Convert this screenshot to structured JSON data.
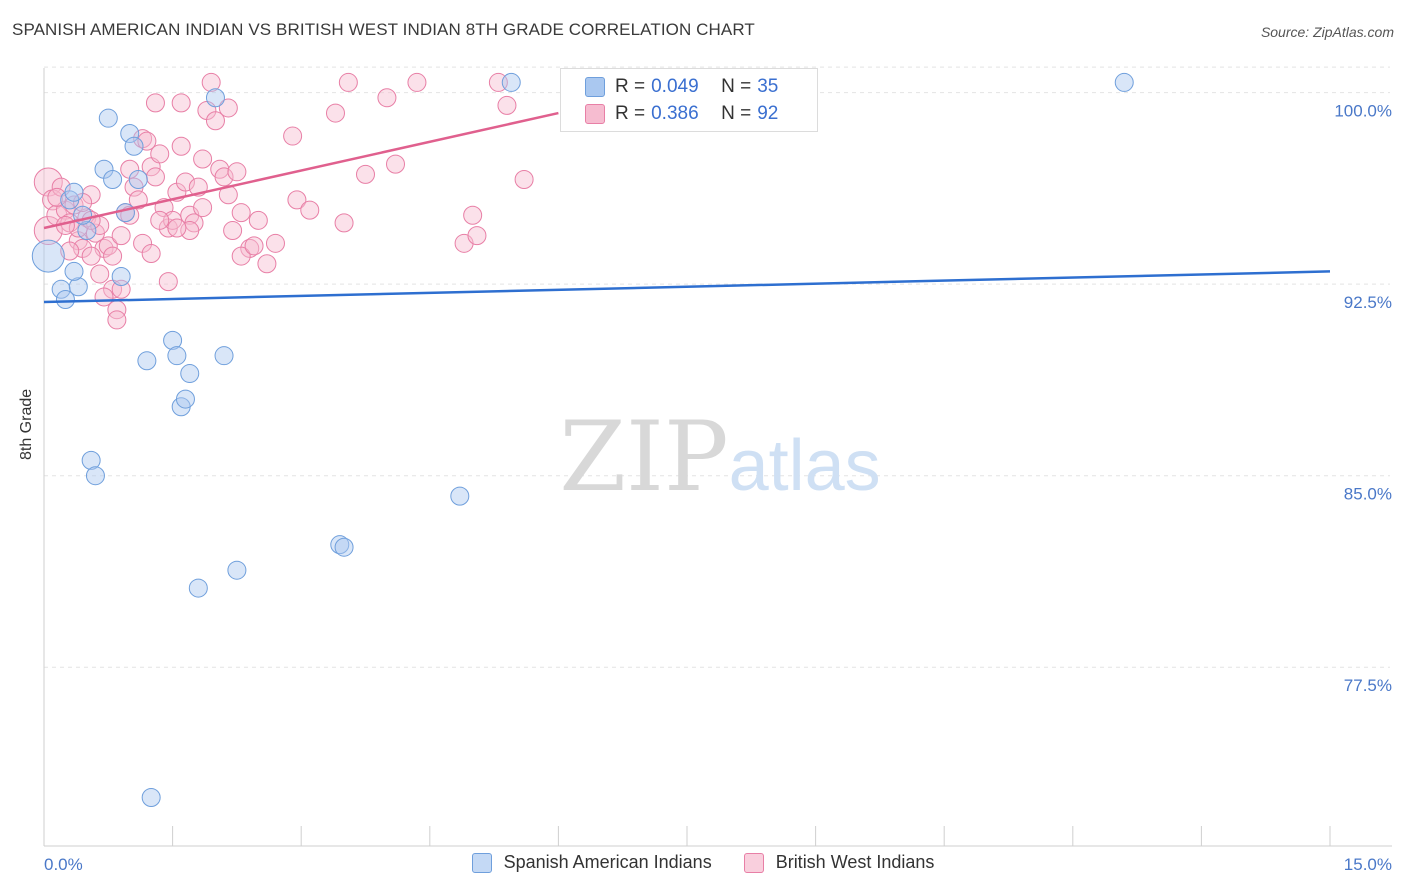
{
  "title": "SPANISH AMERICAN INDIAN VS BRITISH WEST INDIAN 8TH GRADE CORRELATION CHART",
  "source": "Source: ZipAtlas.com",
  "watermark": {
    "zip": "ZIP",
    "atlas": "atlas"
  },
  "legend": {
    "series1": {
      "r_label": "R = ",
      "r_value": "0.049",
      "n_label": "N = ",
      "n_value": "35"
    },
    "series2": {
      "r_label": "R = ",
      "r_value": "0.386",
      "n_label": "N = ",
      "n_value": "92"
    }
  },
  "colors": {
    "blue_fill": "#aac8f0",
    "blue_stroke": "#6f9fdc",
    "blue_line": "#2e6fd0",
    "pink_fill": "#f6bcd0",
    "pink_stroke": "#e87fa6",
    "pink_line": "#e0608e",
    "tick_text": "#4a78c8",
    "grid": "#e4e4e4"
  },
  "chart_data": {
    "type": "scatter",
    "title": "SPANISH AMERICAN INDIAN VS BRITISH WEST INDIAN 8TH GRADE CORRELATION CHART",
    "xlabel": "",
    "ylabel": "8th Grade",
    "xlim": [
      0,
      15
    ],
    "ylim": [
      70.5,
      101.2
    ],
    "x_tick_labels": [
      "0.0%",
      "15.0%"
    ],
    "y_ticks": [
      77.5,
      85.0,
      92.5,
      100.0
    ],
    "y_tick_labels": [
      "77.5%",
      "85.0%",
      "92.5%",
      "100.0%"
    ],
    "series": [
      {
        "name": "Spanish American Indians",
        "color": "blue",
        "R": 0.049,
        "N": 35,
        "trend": {
          "x": [
            0,
            15
          ],
          "y": [
            91.8,
            93.0
          ]
        },
        "points": [
          [
            0.05,
            93.6,
            16
          ],
          [
            0.2,
            92.3,
            9
          ],
          [
            0.25,
            91.9,
            9
          ],
          [
            0.3,
            95.8,
            9
          ],
          [
            0.35,
            96.1,
            9
          ],
          [
            0.4,
            92.4,
            9
          ],
          [
            0.5,
            94.6,
            9
          ],
          [
            0.55,
            85.6,
            9
          ],
          [
            0.6,
            85.0,
            9
          ],
          [
            0.7,
            97.0,
            9
          ],
          [
            0.75,
            99.0,
            9
          ],
          [
            0.8,
            96.6,
            9
          ],
          [
            0.9,
            92.8,
            9
          ],
          [
            0.95,
            95.3,
            9
          ],
          [
            1.0,
            98.4,
            9
          ],
          [
            1.05,
            97.9,
            9
          ],
          [
            1.1,
            96.6,
            9
          ],
          [
            1.2,
            89.5,
            9
          ],
          [
            1.25,
            72.4,
            9
          ],
          [
            1.5,
            90.3,
            9
          ],
          [
            1.55,
            89.7,
            9
          ],
          [
            1.6,
            87.7,
            9
          ],
          [
            1.65,
            88.0,
            9
          ],
          [
            1.7,
            89.0,
            9
          ],
          [
            1.8,
            80.6,
            9
          ],
          [
            2.0,
            99.8,
            9
          ],
          [
            2.1,
            89.7,
            9
          ],
          [
            2.25,
            81.3,
            9
          ],
          [
            3.45,
            82.3,
            9
          ],
          [
            3.5,
            82.2,
            9
          ],
          [
            4.85,
            84.2,
            9
          ],
          [
            5.45,
            100.4,
            9
          ],
          [
            12.6,
            100.4,
            9
          ],
          [
            0.45,
            95.2,
            9
          ],
          [
            0.35,
            93.0,
            9
          ]
        ]
      },
      {
        "name": "British West Indians",
        "color": "pink",
        "R": 0.386,
        "N": 92,
        "trend": {
          "x": [
            0,
            6.0
          ],
          "y": [
            94.7,
            99.2
          ]
        },
        "points": [
          [
            0.05,
            96.5,
            14
          ],
          [
            0.05,
            94.6,
            14
          ],
          [
            0.1,
            95.8,
            10
          ],
          [
            0.15,
            95.2,
            10
          ],
          [
            0.2,
            96.3,
            9
          ],
          [
            0.25,
            95.4,
            9
          ],
          [
            0.3,
            94.9,
            9
          ],
          [
            0.35,
            95.6,
            9
          ],
          [
            0.4,
            94.2,
            9
          ],
          [
            0.45,
            93.9,
            9
          ],
          [
            0.5,
            95.1,
            9
          ],
          [
            0.55,
            96.0,
            9
          ],
          [
            0.6,
            94.5,
            9
          ],
          [
            0.65,
            92.9,
            9
          ],
          [
            0.7,
            93.9,
            9
          ],
          [
            0.75,
            94.0,
            9
          ],
          [
            0.8,
            92.3,
            9
          ],
          [
            0.85,
            91.5,
            9
          ],
          [
            0.9,
            94.4,
            9
          ],
          [
            0.95,
            95.3,
            9
          ],
          [
            1.0,
            97.0,
            9
          ],
          [
            1.05,
            96.3,
            9
          ],
          [
            1.1,
            95.8,
            9
          ],
          [
            1.15,
            98.2,
            9
          ],
          [
            1.2,
            98.1,
            9
          ],
          [
            1.25,
            97.1,
            9
          ],
          [
            1.3,
            96.7,
            9
          ],
          [
            1.35,
            97.6,
            9
          ],
          [
            1.4,
            95.5,
            9
          ],
          [
            1.45,
            94.7,
            9
          ],
          [
            1.5,
            95.0,
            9
          ],
          [
            1.55,
            96.1,
            9
          ],
          [
            1.6,
            97.9,
            9
          ],
          [
            1.65,
            96.5,
            9
          ],
          [
            1.7,
            95.2,
            9
          ],
          [
            1.75,
            94.9,
            9
          ],
          [
            1.8,
            96.3,
            9
          ],
          [
            1.85,
            97.4,
            9
          ],
          [
            1.9,
            99.3,
            9
          ],
          [
            1.95,
            100.4,
            9
          ],
          [
            2.0,
            98.9,
            9
          ],
          [
            2.05,
            97.0,
            9
          ],
          [
            2.1,
            96.7,
            9
          ],
          [
            2.15,
            96.0,
            9
          ],
          [
            2.2,
            94.6,
            9
          ],
          [
            2.25,
            96.9,
            9
          ],
          [
            2.3,
            95.3,
            9
          ],
          [
            2.4,
            93.9,
            9
          ],
          [
            2.5,
            95.0,
            9
          ],
          [
            2.6,
            93.3,
            9
          ],
          [
            2.7,
            94.1,
            9
          ],
          [
            2.9,
            98.3,
            9
          ],
          [
            2.95,
            95.8,
            9
          ],
          [
            3.1,
            95.4,
            9
          ],
          [
            3.4,
            99.2,
            9
          ],
          [
            3.5,
            94.9,
            9
          ],
          [
            3.55,
            100.4,
            9
          ],
          [
            3.75,
            96.8,
            9
          ],
          [
            4.0,
            99.8,
            9
          ],
          [
            4.1,
            97.2,
            9
          ],
          [
            4.35,
            100.4,
            9
          ],
          [
            4.9,
            94.1,
            9
          ],
          [
            5.0,
            95.2,
            9
          ],
          [
            5.05,
            94.4,
            9
          ],
          [
            5.3,
            100.4,
            9
          ],
          [
            5.4,
            99.5,
            9
          ],
          [
            5.6,
            96.6,
            9
          ],
          [
            1.3,
            99.6,
            9
          ],
          [
            1.6,
            99.6,
            9
          ],
          [
            2.15,
            99.4,
            9
          ],
          [
            0.55,
            93.6,
            9
          ],
          [
            0.65,
            94.8,
            9
          ],
          [
            0.7,
            92.0,
            9
          ],
          [
            0.8,
            93.6,
            9
          ],
          [
            0.85,
            91.1,
            9
          ],
          [
            0.9,
            92.3,
            9
          ],
          [
            1.15,
            94.1,
            9
          ],
          [
            1.25,
            93.7,
            9
          ],
          [
            1.45,
            92.6,
            9
          ],
          [
            1.7,
            94.6,
            9
          ],
          [
            1.85,
            95.5,
            9
          ],
          [
            2.3,
            93.6,
            9
          ],
          [
            2.45,
            94.0,
            9
          ],
          [
            0.3,
            93.8,
            9
          ],
          [
            0.4,
            94.7,
            9
          ],
          [
            0.15,
            95.9,
            9
          ],
          [
            0.25,
            94.8,
            9
          ],
          [
            0.45,
            95.7,
            9
          ],
          [
            0.55,
            95.0,
            9
          ],
          [
            1.0,
            95.2,
            9
          ],
          [
            1.35,
            95.0,
            9
          ],
          [
            1.55,
            94.7,
            9
          ]
        ]
      }
    ],
    "legend": [
      {
        "label": "Spanish American Indians",
        "color": "blue"
      },
      {
        "label": "British West Indians",
        "color": "pink"
      }
    ]
  }
}
